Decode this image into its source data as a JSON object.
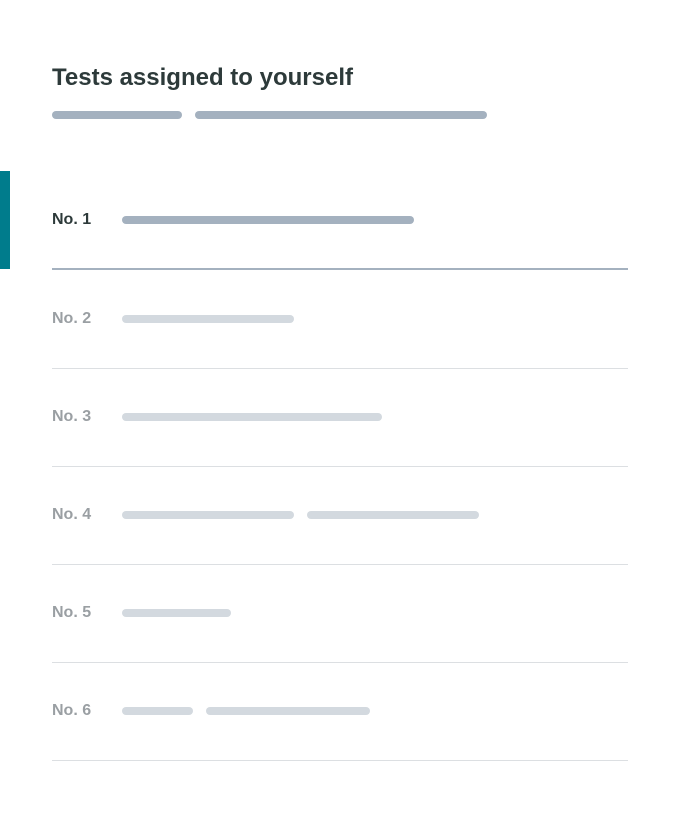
{
  "header": {
    "title": "Tests assigned to yourself"
  },
  "colors": {
    "accent": "#007c8c",
    "title": "#2d3a3a",
    "placeholder_active": "#a4b1bf",
    "placeholder_inactive": "#d3d9df"
  },
  "rows": [
    {
      "label": "No. 1",
      "selected": true
    },
    {
      "label": "No. 2",
      "selected": false
    },
    {
      "label": "No. 3",
      "selected": false
    },
    {
      "label": "No. 4",
      "selected": false
    },
    {
      "label": "No. 5",
      "selected": false
    },
    {
      "label": "No. 6",
      "selected": false
    }
  ]
}
